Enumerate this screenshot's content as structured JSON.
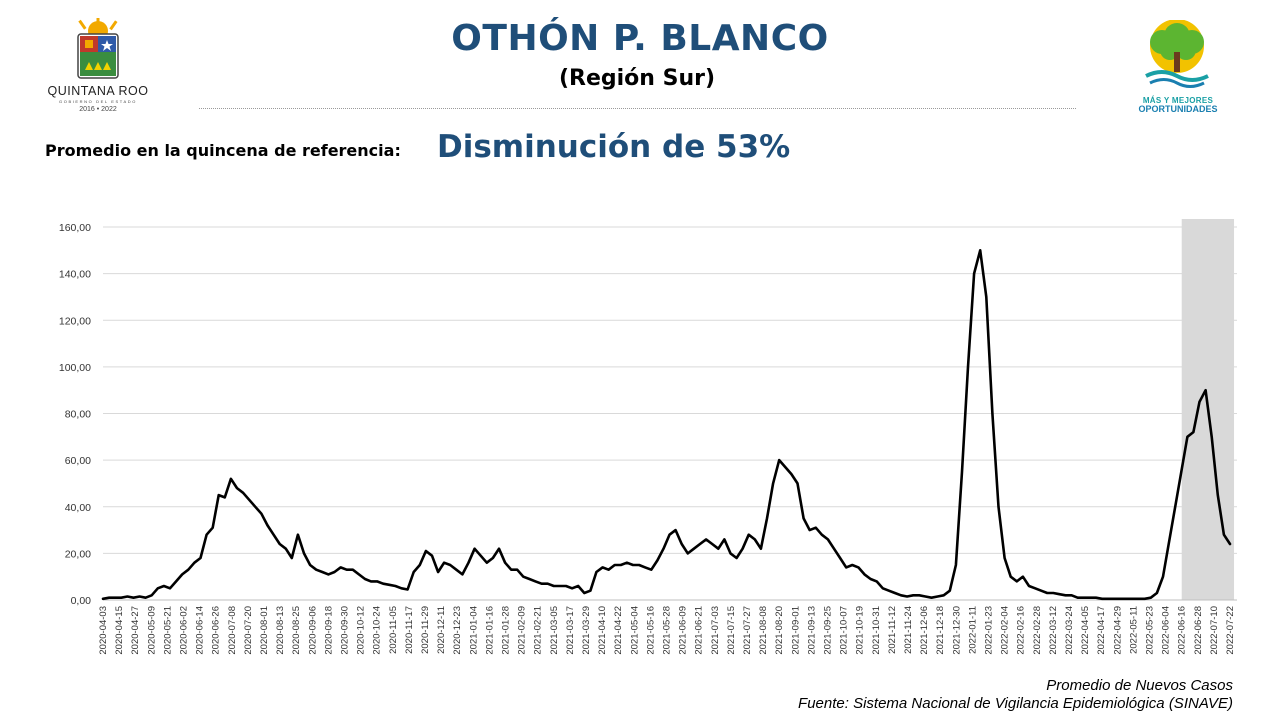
{
  "header": {
    "title": "OTHÓN P. BLANCO",
    "subtitle": "(Región Sur)",
    "left_logo": {
      "state": "QUINTANA ROO",
      "gob": "GOBIERNO DEL ESTADO",
      "years": "2016 • 2022"
    },
    "right_logo": {
      "line1": "MÁS Y MEJORES",
      "line2": "OPORTUNIDADES"
    }
  },
  "reference": {
    "label": "Promedio en la quincena de referencia:",
    "value": "Disminución de 53%"
  },
  "footer": {
    "series_note": "Promedio de Nuevos Casos",
    "source": "Fuente: Sistema Nacional de Vigilancia Epidemiológica (SINAVE)"
  },
  "colors": {
    "title": "#1f4e79",
    "line": "#000000",
    "highlight": "#d9d9d9",
    "grid": "#d9d9d9"
  },
  "chart_data": {
    "type": "line",
    "title": "",
    "xlabel": "",
    "ylabel": "",
    "ylim": [
      0,
      160
    ],
    "y_ticks": [
      "0,00",
      "20,00",
      "40,00",
      "60,00",
      "80,00",
      "100,00",
      "120,00",
      "140,00",
      "160,00"
    ],
    "grid": "horizontal",
    "x_ticks": [
      "2020-04-03",
      "2020-04-15",
      "2020-04-27",
      "2020-05-09",
      "2020-05-21",
      "2020-06-02",
      "2020-06-14",
      "2020-06-26",
      "2020-07-08",
      "2020-07-20",
      "2020-08-01",
      "2020-08-13",
      "2020-08-25",
      "2020-09-06",
      "2020-09-18",
      "2020-09-30",
      "2020-10-12",
      "2020-10-24",
      "2020-11-05",
      "2020-11-17",
      "2020-11-29",
      "2020-12-11",
      "2020-12-23",
      "2021-01-04",
      "2021-01-16",
      "2021-01-28",
      "2021-02-09",
      "2021-02-21",
      "2021-03-05",
      "2021-03-17",
      "2021-03-29",
      "2021-04-10",
      "2021-04-22",
      "2021-05-04",
      "2021-05-16",
      "2021-05-28",
      "2021-06-09",
      "2021-06-21",
      "2021-07-03",
      "2021-07-15",
      "2021-07-27",
      "2021-08-08",
      "2021-08-20",
      "2021-09-01",
      "2021-09-13",
      "2021-09-25",
      "2021-10-07",
      "2021-10-19",
      "2021-10-31",
      "2021-11-12",
      "2021-11-24",
      "2021-12-06",
      "2021-12-18",
      "2021-12-30",
      "2022-01-11",
      "2022-01-23",
      "2022-02-04",
      "2022-02-16",
      "2022-02-28",
      "2022-03-12",
      "2022-03-24",
      "2022-04-05",
      "2022-04-17",
      "2022-04-29",
      "2022-05-11",
      "2022-05-23",
      "2022-06-04",
      "2022-06-16",
      "2022-06-28",
      "2022-07-10",
      "2022-07-22"
    ],
    "highlight_range": [
      "2022-06-16",
      "2022-07-25"
    ],
    "series": [
      {
        "values": [
          0.5,
          1,
          1,
          1,
          1.5,
          1,
          1.5,
          1,
          2,
          5,
          6,
          5,
          8,
          11,
          13,
          16,
          18,
          28,
          31,
          45,
          44,
          52,
          48,
          46,
          43,
          40,
          37,
          32,
          28,
          24,
          22,
          18,
          28,
          20,
          15,
          13,
          12,
          11,
          12,
          14,
          13,
          13,
          11,
          9,
          8,
          8,
          7,
          6.5,
          6,
          5,
          4.5,
          12,
          15,
          21,
          19,
          12,
          16,
          15,
          13,
          11,
          16,
          22,
          19,
          16,
          18,
          22,
          16,
          13,
          13,
          10,
          9,
          8,
          7,
          7,
          6,
          6,
          6,
          5,
          6,
          3,
          4,
          12,
          14,
          13,
          15,
          15,
          16,
          15,
          15,
          14,
          13,
          17,
          22,
          28,
          30,
          24,
          20,
          22,
          24,
          26,
          24,
          22,
          26,
          20,
          18,
          22,
          28,
          26,
          22,
          35,
          50,
          60,
          57,
          54,
          50,
          35,
          30,
          31,
          28,
          26,
          22,
          18,
          14,
          15,
          14,
          11,
          9,
          8,
          5,
          4,
          3,
          2,
          1.5,
          2,
          2,
          1.5,
          1,
          1.5,
          2,
          4,
          15,
          55,
          100,
          140,
          150,
          130,
          80,
          40,
          18,
          10,
          8,
          10,
          6,
          5,
          4,
          3,
          3,
          2.5,
          2,
          2,
          1,
          1,
          1,
          1,
          0.5,
          0.5,
          0.5,
          0.5,
          0.5,
          0.5,
          0.5,
          0.5,
          1,
          3,
          10,
          25,
          40,
          55,
          70,
          72,
          85,
          90,
          70,
          45,
          28,
          24
        ]
      }
    ]
  }
}
